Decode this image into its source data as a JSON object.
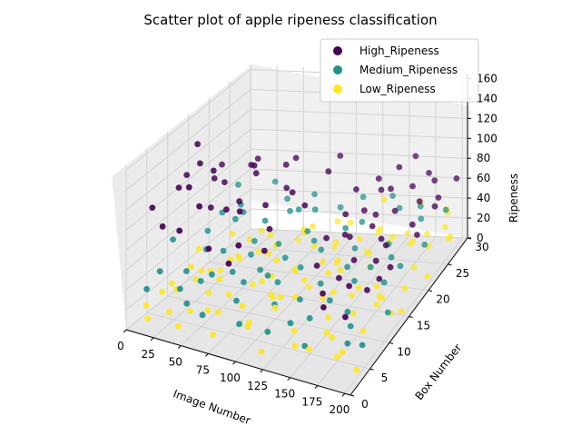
{
  "chart_data": {
    "type": "scatter",
    "projection": "3d",
    "title": "Scatter plot of apple ripeness classification",
    "xlabel": "Image Number",
    "ylabel": "Box Number",
    "zlabel": "Ripeness",
    "xlim": [
      0,
      205
    ],
    "ylim": [
      0,
      30
    ],
    "zlim": [
      0,
      165
    ],
    "xticks": [
      "0",
      "25",
      "50",
      "75",
      "100",
      "125",
      "150",
      "175",
      "200"
    ],
    "yticks": [
      "0",
      "5",
      "10",
      "15",
      "20",
      "25",
      "30"
    ],
    "zticks": [
      "0",
      "20",
      "40",
      "60",
      "80",
      "100",
      "120",
      "140",
      "160"
    ],
    "grid": true,
    "legend_position": "top-right",
    "series": [
      {
        "name": "High_Ripeness",
        "color": "#440154",
        "points": [
          [
            5,
            5,
            107
          ],
          [
            10,
            12,
            117
          ],
          [
            18,
            8,
            120
          ],
          [
            22,
            3,
            100
          ],
          [
            28,
            14,
            110
          ],
          [
            35,
            6,
            132
          ],
          [
            40,
            10,
            98
          ],
          [
            47,
            18,
            112
          ],
          [
            52,
            4,
            125
          ],
          [
            58,
            9,
            104
          ],
          [
            63,
            15,
            118
          ],
          [
            68,
            2,
            95
          ],
          [
            72,
            20,
            108
          ],
          [
            78,
            7,
            115
          ],
          [
            83,
            12,
            102
          ],
          [
            88,
            4,
            96
          ],
          [
            93,
            16,
            100
          ],
          [
            98,
            9,
            94
          ],
          [
            104,
            22,
            97
          ],
          [
            108,
            5,
            92
          ],
          [
            112,
            14,
            99
          ],
          [
            12,
            20,
            100
          ],
          [
            26,
            17,
            95
          ],
          [
            38,
            22,
            102
          ],
          [
            45,
            1,
            110
          ],
          [
            55,
            13,
            96
          ],
          [
            66,
            24,
            98
          ],
          [
            80,
            18,
            94
          ],
          [
            90,
            1,
            91
          ],
          [
            100,
            26,
            95
          ],
          [
            30,
            10,
            140
          ],
          [
            50,
            8,
            145
          ],
          [
            65,
            14,
            130
          ],
          [
            20,
            12,
            150
          ],
          [
            130,
            22,
            82
          ],
          [
            135,
            18,
            76
          ],
          [
            140,
            25,
            80
          ],
          [
            145,
            20,
            72
          ],
          [
            150,
            15,
            70
          ],
          [
            155,
            24,
            76
          ],
          [
            160,
            18,
            68
          ],
          [
            165,
            12,
            64
          ],
          [
            170,
            21,
            70
          ],
          [
            175,
            8,
            60
          ],
          [
            180,
            16,
            62
          ],
          [
            185,
            27,
            72
          ],
          [
            190,
            20,
            64
          ],
          [
            195,
            13,
            58
          ],
          [
            200,
            23,
            68
          ],
          [
            138,
            10,
            62
          ],
          [
            148,
            28,
            78
          ],
          [
            158,
            6,
            58
          ],
          [
            168,
            26,
            70
          ],
          [
            178,
            14,
            56
          ],
          [
            188,
            9,
            54
          ],
          [
            198,
            19,
            60
          ],
          [
            142,
            16,
            66
          ],
          [
            152,
            21,
            64
          ],
          [
            162,
            9,
            60
          ],
          [
            172,
            17,
            62
          ],
          [
            182,
            24,
            66
          ],
          [
            192,
            11,
            56
          ],
          [
            202,
            28,
            70
          ],
          [
            132,
            14,
            70
          ],
          [
            146,
            24,
            74
          ],
          [
            156,
            30,
            80
          ],
          [
            166,
            4,
            56
          ],
          [
            176,
            28,
            74
          ],
          [
            186,
            4,
            52
          ],
          [
            196,
            25,
            66
          ]
        ]
      },
      {
        "name": "Medium_Ripeness",
        "color": "#21918c",
        "points": [
          [
            5,
            10,
            58
          ],
          [
            12,
            5,
            45
          ],
          [
            18,
            15,
            52
          ],
          [
            25,
            8,
            38
          ],
          [
            32,
            20,
            55
          ],
          [
            38,
            3,
            42
          ],
          [
            44,
            12,
            48
          ],
          [
            50,
            18,
            36
          ],
          [
            56,
            6,
            50
          ],
          [
            62,
            14,
            40
          ],
          [
            68,
            22,
            53
          ],
          [
            74,
            9,
            35
          ],
          [
            80,
            16,
            46
          ],
          [
            86,
            4,
            40
          ],
          [
            92,
            20,
            44
          ],
          [
            98,
            11,
            32
          ],
          [
            104,
            25,
            48
          ],
          [
            110,
            7,
            30
          ],
          [
            116,
            17,
            42
          ],
          [
            122,
            2,
            28
          ],
          [
            128,
            24,
            40
          ],
          [
            134,
            12,
            34
          ],
          [
            140,
            19,
            38
          ],
          [
            146,
            6,
            30
          ],
          [
            152,
            27,
            42
          ],
          [
            158,
            14,
            32
          ],
          [
            164,
            21,
            36
          ],
          [
            170,
            9,
            28
          ],
          [
            176,
            26,
            38
          ],
          [
            182,
            15,
            30
          ],
          [
            188,
            4,
            26
          ],
          [
            194,
            22,
            34
          ],
          [
            200,
            11,
            24
          ],
          [
            8,
            25,
            62
          ],
          [
            15,
            1,
            42
          ],
          [
            22,
            22,
            54
          ],
          [
            28,
            12,
            46
          ],
          [
            35,
            27,
            60
          ],
          [
            42,
            7,
            36
          ],
          [
            48,
            2,
            34
          ],
          [
            54,
            25,
            52
          ],
          [
            60,
            10,
            38
          ],
          [
            66,
            1,
            32
          ],
          [
            72,
            27,
            50
          ],
          [
            78,
            12,
            36
          ],
          [
            84,
            24,
            48
          ],
          [
            90,
            15,
            38
          ],
          [
            96,
            2,
            28
          ],
          [
            102,
            19,
            40
          ],
          [
            108,
            14,
            36
          ],
          [
            114,
            28,
            46
          ],
          [
            120,
            22,
            42
          ],
          [
            126,
            9,
            30
          ],
          [
            132,
            5,
            26
          ],
          [
            138,
            29,
            44
          ],
          [
            144,
            16,
            34
          ],
          [
            150,
            10,
            30
          ],
          [
            156,
            2,
            24
          ],
          [
            162,
            17,
            32
          ],
          [
            168,
            28,
            40
          ],
          [
            174,
            19,
            34
          ],
          [
            180,
            7,
            26
          ],
          [
            186,
            18,
            32
          ],
          [
            192,
            28,
            38
          ],
          [
            198,
            5,
            22
          ],
          [
            40,
            16,
            64
          ],
          [
            60,
            18,
            58
          ],
          [
            80,
            21,
            60
          ],
          [
            100,
            8,
            52
          ],
          [
            20,
            18,
            60
          ]
        ]
      },
      {
        "name": "Low_Ripeness",
        "color": "#fde725",
        "points": [
          [
            3,
            4,
            12
          ],
          [
            8,
            9,
            18
          ],
          [
            12,
            2,
            8
          ],
          [
            16,
            14,
            15
          ],
          [
            20,
            7,
            22
          ],
          [
            24,
            19,
            10
          ],
          [
            28,
            3,
            16
          ],
          [
            32,
            12,
            25
          ],
          [
            36,
            6,
            8
          ],
          [
            40,
            17,
            20
          ],
          [
            44,
            1,
            14
          ],
          [
            48,
            10,
            28
          ],
          [
            52,
            21,
            12
          ],
          [
            56,
            5,
            18
          ],
          [
            60,
            15,
            6
          ],
          [
            64,
            8,
            24
          ],
          [
            68,
            24,
            16
          ],
          [
            72,
            2,
            10
          ],
          [
            76,
            13,
            20
          ],
          [
            80,
            20,
            4
          ],
          [
            84,
            6,
            26
          ],
          [
            88,
            18,
            12
          ],
          [
            92,
            11,
            18
          ],
          [
            96,
            26,
            8
          ],
          [
            100,
            3,
            22
          ],
          [
            104,
            16,
            14
          ],
          [
            108,
            9,
            28
          ],
          [
            112,
            22,
            6
          ],
          [
            116,
            14,
            18
          ],
          [
            120,
            1,
            12
          ],
          [
            124,
            19,
            24
          ],
          [
            128,
            7,
            8
          ],
          [
            132,
            27,
            16
          ],
          [
            136,
            12,
            20
          ],
          [
            140,
            4,
            10
          ],
          [
            144,
            21,
            26
          ],
          [
            148,
            16,
            6
          ],
          [
            152,
            9,
            18
          ],
          [
            156,
            28,
            12
          ],
          [
            160,
            2,
            22
          ],
          [
            164,
            18,
            8
          ],
          [
            168,
            11,
            16
          ],
          [
            172,
            25,
            20
          ],
          [
            176,
            6,
            4
          ],
          [
            180,
            15,
            14
          ],
          [
            184,
            22,
            10
          ],
          [
            188,
            8,
            18
          ],
          [
            192,
            29,
            6
          ],
          [
            196,
            13,
            12
          ],
          [
            200,
            3,
            8
          ],
          [
            204,
            20,
            14
          ],
          [
            10,
            23,
            20
          ],
          [
            18,
            11,
            30
          ],
          [
            26,
            26,
            14
          ],
          [
            34,
            8,
            32
          ],
          [
            42,
            24,
            18
          ],
          [
            50,
            14,
            36
          ],
          [
            58,
            28,
            10
          ],
          [
            66,
            19,
            30
          ],
          [
            74,
            26,
            22
          ],
          [
            82,
            15,
            34
          ],
          [
            90,
            28,
            20
          ],
          [
            98,
            20,
            30
          ],
          [
            106,
            27,
            24
          ],
          [
            114,
            6,
            32
          ],
          [
            122,
            25,
            18
          ],
          [
            130,
            15,
            30
          ],
          [
            138,
            23,
            14
          ],
          [
            146,
            12,
            28
          ],
          [
            154,
            24,
            22
          ],
          [
            162,
            14,
            26
          ],
          [
            170,
            5,
            22
          ],
          [
            178,
            27,
            18
          ],
          [
            186,
            12,
            24
          ],
          [
            194,
            17,
            16
          ],
          [
            202,
            26,
            20
          ],
          [
            6,
            16,
            28
          ],
          [
            14,
            5,
            25
          ],
          [
            22,
            17,
            6
          ],
          [
            30,
            22,
            20
          ],
          [
            38,
            10,
            12
          ],
          [
            46,
            25,
            6
          ],
          [
            54,
            18,
            26
          ],
          [
            62,
            6,
            14
          ],
          [
            70,
            17,
            8
          ],
          [
            78,
            23,
            28
          ],
          [
            86,
            13,
            6
          ],
          [
            94,
            5,
            16
          ],
          [
            102,
            24,
            12
          ],
          [
            110,
            19,
            20
          ],
          [
            118,
            10,
            26
          ],
          [
            126,
            29,
            10
          ],
          [
            134,
            17,
            24
          ],
          [
            142,
            28,
            8
          ],
          [
            150,
            20,
            16
          ],
          [
            158,
            7,
            14
          ],
          [
            166,
            26,
            12
          ],
          [
            174,
            16,
            10
          ],
          [
            182,
            3,
            16
          ],
          [
            190,
            24,
            22
          ],
          [
            198,
            15,
            4
          ],
          [
            130,
            29,
            40
          ],
          [
            165,
            29,
            38
          ],
          [
            190,
            29,
            30
          ],
          [
            185,
            30,
            28
          ],
          [
            195,
            27,
            26
          ]
        ]
      }
    ]
  }
}
